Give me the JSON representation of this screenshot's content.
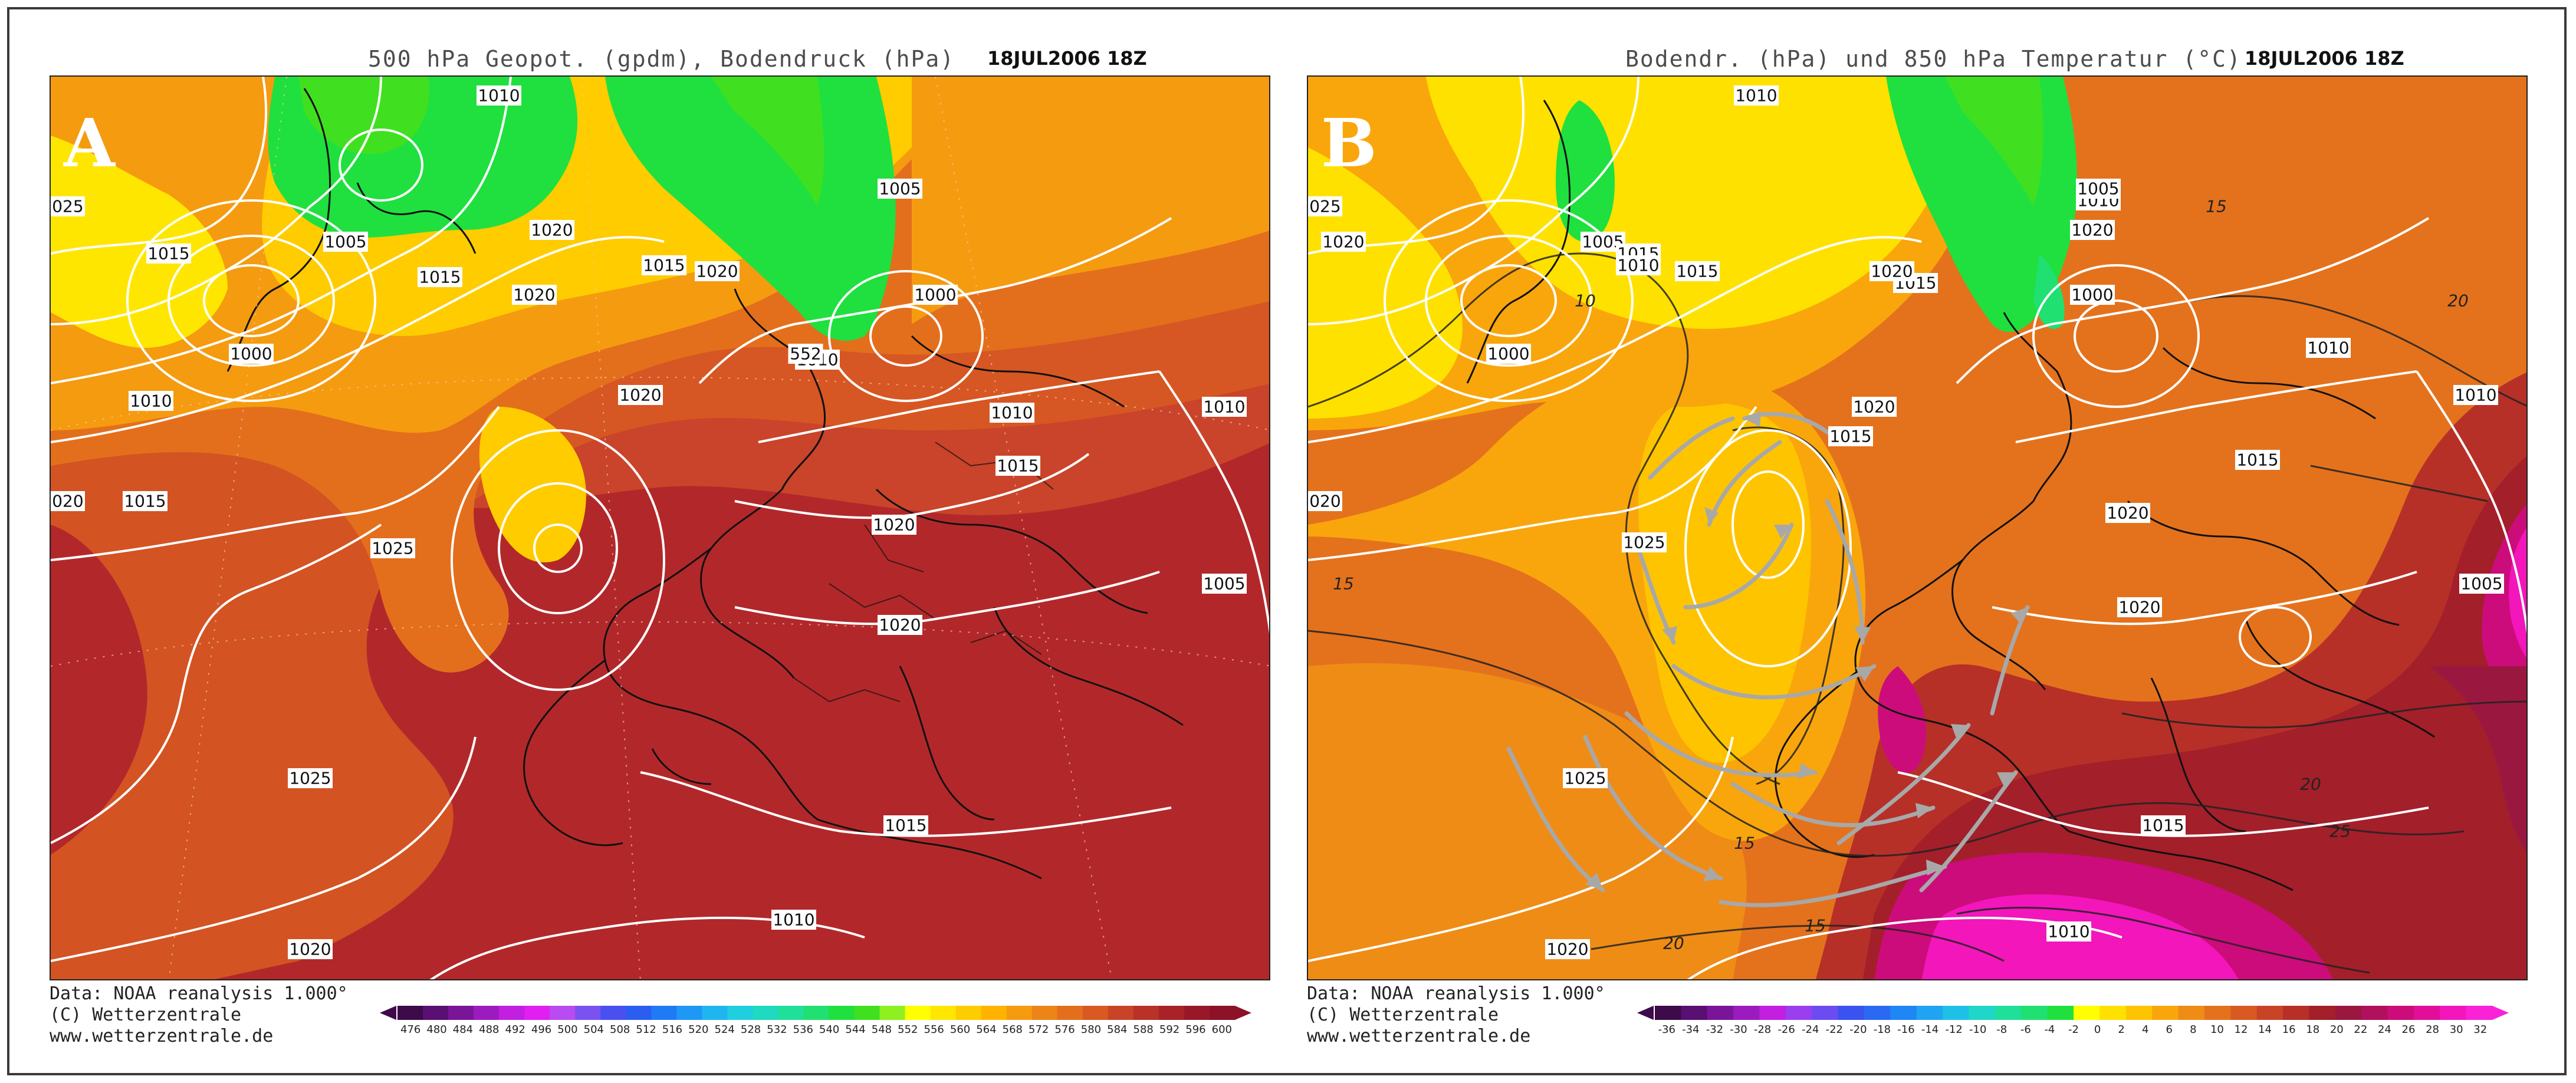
{
  "panels": [
    {
      "id": "a",
      "label": "A",
      "title": "500 hPa Geopot. (gpdm), Bodendruck (hPa)",
      "date": "18JUL2006 18Z",
      "credit_lines": [
        "Data: NOAA reanalysis 1.000°",
        "(C) Wetterzentrale",
        "www.wetterzentrale.de"
      ],
      "scale_colors": [
        "#3d0a4a",
        "#5a0f72",
        "#7a1599",
        "#9c1bbf",
        "#c21fe0",
        "#e01ff0",
        "#b84cf0",
        "#7a52f0",
        "#4a50f0",
        "#2a5ef0",
        "#1f7af5",
        "#1f98f5",
        "#1fb6f0",
        "#1fcfe0",
        "#1fd9c0",
        "#1fdf9a",
        "#1fe070",
        "#1fe03f",
        "#40e020",
        "#8ff020",
        "#ffff00",
        "#ffe600",
        "#ffcc00",
        "#ffb300",
        "#f59b10",
        "#ec8418",
        "#e36f1c",
        "#d85a22",
        "#c94426",
        "#b83228",
        "#a82228",
        "#98182a",
        "#8c1228"
      ],
      "scale_labels": [
        "476",
        "480",
        "484",
        "488",
        "492",
        "496",
        "500",
        "504",
        "508",
        "512",
        "516",
        "520",
        "524",
        "528",
        "532",
        "536",
        "540",
        "544",
        "548",
        "552",
        "556",
        "560",
        "564",
        "568",
        "572",
        "576",
        "580",
        "584",
        "588",
        "592",
        "596",
        "600"
      ],
      "isobar_labels": [
        "1010",
        "1005",
        "1020",
        "1015",
        "1000",
        "1015",
        "1010",
        "1020",
        "1020",
        "1015",
        "1020",
        "1015",
        "1025",
        "1025",
        "1020",
        "1010",
        "1005",
        "1000",
        "1010",
        "1015",
        "1010",
        "1020",
        "1020",
        "1005",
        "1015",
        "1010",
        "1020",
        "552",
        "1025"
      ]
    },
    {
      "id": "b",
      "label": "B",
      "title": "Bodendr. (hPa) und 850 hPa Temperatur (°C)",
      "date": "18JUL2006 18Z",
      "credit_lines": [
        "Data: NOAA reanalysis 1.000°",
        "(C) Wetterzentrale",
        "www.wetterzentrale.de"
      ],
      "scale_colors": [
        "#3d0a4a",
        "#5a0f72",
        "#7a1599",
        "#9c1bbf",
        "#c21fe0",
        "#9a3ef0",
        "#6a4cf0",
        "#3a52f0",
        "#2a6af2",
        "#1f86f5",
        "#1fa4f2",
        "#1fc0e8",
        "#1fd6c8",
        "#1fdf9a",
        "#1fe070",
        "#1fe03f",
        "#ffff00",
        "#ffe100",
        "#ffc400",
        "#f9a60c",
        "#ef8c16",
        "#e4721c",
        "#d85a22",
        "#c84426",
        "#b63028",
        "#a31f2a",
        "#9a1840",
        "#b0105c",
        "#cc0c7a",
        "#e20e9a",
        "#f216bb",
        "#fa22d6"
      ],
      "scale_labels": [
        "-36",
        "-34",
        "-32",
        "-30",
        "-28",
        "-26",
        "-24",
        "-22",
        "-20",
        "-18",
        "-16",
        "-14",
        "-12",
        "-10",
        "-8",
        "-6",
        "-4",
        "-2",
        "0",
        "2",
        "4",
        "6",
        "8",
        "10",
        "12",
        "14",
        "16",
        "18",
        "20",
        "22",
        "24",
        "26",
        "28",
        "30",
        "32"
      ],
      "isobar_labels": [
        "1010",
        "1005",
        "1020",
        "1015",
        "1000",
        "1015",
        "1010",
        "1020",
        "1020",
        "1015",
        "1020",
        "1015",
        "1025",
        "1025",
        "1020",
        "1010",
        "1005",
        "1000",
        "1010",
        "1015",
        "1010",
        "1020",
        "1020",
        "1005",
        "1015",
        "1010",
        "1020",
        "1025"
      ],
      "temp_labels": [
        "15",
        "10",
        "20",
        "15",
        "15",
        "20",
        "25",
        "15",
        "20"
      ]
    }
  ]
}
